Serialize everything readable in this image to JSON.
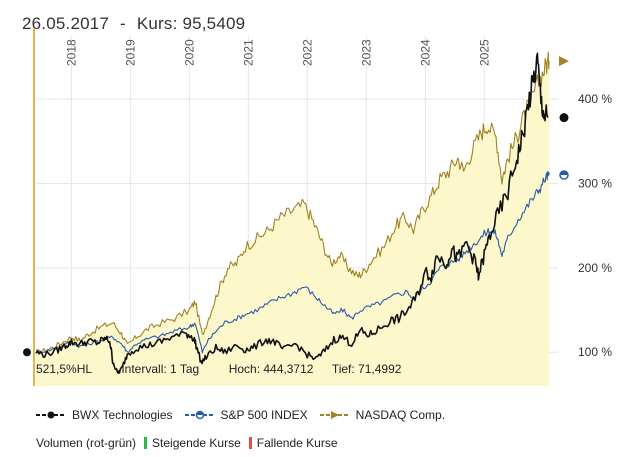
{
  "header": {
    "date": "26.05.2017",
    "separator": "-",
    "price_label": "Kurs: 95,5409"
  },
  "stats": {
    "hl": "521,5%HL",
    "interval": "Intervall: 1 Tag",
    "high": "Hoch: 444,3712",
    "low": "Tief: 71,4992"
  },
  "legend": {
    "volume_label": "Volumen (rot-grün)",
    "rising": "Steigende Kurse",
    "falling": "Fallende Kurse"
  },
  "colors": {
    "bwx": "#111111",
    "sp500": "#2a5caa",
    "nasdaq": "#a08324",
    "fill": "#fdf7cc",
    "start_line": "#e8b24a",
    "rising": "#2db84a",
    "falling": "#e84a4a"
  },
  "chart_data": {
    "type": "line",
    "x_ticks": [
      "2018",
      "2019",
      "2020",
      "2021",
      "2022",
      "2023",
      "2024",
      "2025"
    ],
    "y_ticks": [
      {
        "value": 100,
        "label": "100 %"
      },
      {
        "value": 200,
        "label": "200 %"
      },
      {
        "value": 300,
        "label": "300 %"
      },
      {
        "value": 400,
        "label": "400 %"
      }
    ],
    "x_range": [
      2017.4,
      2026.25
    ],
    "ylim": [
      60,
      470
    ],
    "series": [
      {
        "name": "BWX Technologies",
        "key": "bwx",
        "marker": "circle",
        "points": [
          [
            2017.4,
            100
          ],
          [
            2017.55,
            97
          ],
          [
            2017.75,
            102
          ],
          [
            2017.9,
            108
          ],
          [
            2018.0,
            112
          ],
          [
            2018.15,
            110
          ],
          [
            2018.3,
            113
          ],
          [
            2018.45,
            111
          ],
          [
            2018.55,
            116
          ],
          [
            2018.65,
            114
          ],
          [
            2018.7,
            90
          ],
          [
            2018.78,
            75
          ],
          [
            2018.85,
            80
          ],
          [
            2018.95,
            98
          ],
          [
            2019.1,
            105
          ],
          [
            2019.3,
            108
          ],
          [
            2019.5,
            112
          ],
          [
            2019.7,
            118
          ],
          [
            2019.95,
            122
          ],
          [
            2020.05,
            118
          ],
          [
            2020.1,
            112
          ],
          [
            2020.2,
            88
          ],
          [
            2020.3,
            95
          ],
          [
            2020.45,
            105
          ],
          [
            2020.6,
            100
          ],
          [
            2020.8,
            108
          ],
          [
            2020.95,
            103
          ],
          [
            2021.1,
            106
          ],
          [
            2021.3,
            115
          ],
          [
            2021.45,
            112
          ],
          [
            2021.6,
            103
          ],
          [
            2021.8,
            110
          ],
          [
            2022.0,
            97
          ],
          [
            2022.15,
            92
          ],
          [
            2022.3,
            102
          ],
          [
            2022.45,
            115
          ],
          [
            2022.6,
            118
          ],
          [
            2022.75,
            110
          ],
          [
            2022.9,
            125
          ],
          [
            2023.05,
            120
          ],
          [
            2023.2,
            127
          ],
          [
            2023.4,
            137
          ],
          [
            2023.55,
            140
          ],
          [
            2023.7,
            150
          ],
          [
            2023.85,
            165
          ],
          [
            2024.0,
            195
          ],
          [
            2024.1,
            190
          ],
          [
            2024.2,
            215
          ],
          [
            2024.35,
            205
          ],
          [
            2024.45,
            222
          ],
          [
            2024.55,
            210
          ],
          [
            2024.7,
            230
          ],
          [
            2024.85,
            205
          ],
          [
            2024.9,
            190
          ],
          [
            2025.0,
            215
          ],
          [
            2025.1,
            240
          ],
          [
            2025.25,
            265
          ],
          [
            2025.4,
            290
          ],
          [
            2025.55,
            330
          ],
          [
            2025.65,
            355
          ],
          [
            2025.75,
            395
          ],
          [
            2025.83,
            420
          ],
          [
            2025.9,
            445
          ],
          [
            2025.96,
            400
          ],
          [
            2026.02,
            380
          ],
          [
            2026.08,
            378
          ]
        ]
      },
      {
        "name": "S&P 500 INDEX",
        "key": "sp500",
        "marker": "half-circle",
        "points": [
          [
            2017.4,
            100
          ],
          [
            2017.6,
            102
          ],
          [
            2017.8,
            106
          ],
          [
            2018.0,
            112
          ],
          [
            2018.15,
            107
          ],
          [
            2018.3,
            110
          ],
          [
            2018.55,
            115
          ],
          [
            2018.7,
            118
          ],
          [
            2018.85,
            110
          ],
          [
            2018.95,
            100
          ],
          [
            2019.1,
            110
          ],
          [
            2019.3,
            116
          ],
          [
            2019.55,
            120
          ],
          [
            2019.75,
            125
          ],
          [
            2020.0,
            130
          ],
          [
            2020.1,
            135
          ],
          [
            2020.22,
            100
          ],
          [
            2020.3,
            112
          ],
          [
            2020.45,
            125
          ],
          [
            2020.6,
            135
          ],
          [
            2020.8,
            140
          ],
          [
            2020.95,
            145
          ],
          [
            2021.15,
            150
          ],
          [
            2021.35,
            158
          ],
          [
            2021.55,
            165
          ],
          [
            2021.75,
            170
          ],
          [
            2021.95,
            178
          ],
          [
            2022.15,
            165
          ],
          [
            2022.3,
            155
          ],
          [
            2022.45,
            145
          ],
          [
            2022.6,
            150
          ],
          [
            2022.75,
            140
          ],
          [
            2022.9,
            150
          ],
          [
            2023.1,
            155
          ],
          [
            2023.3,
            160
          ],
          [
            2023.5,
            168
          ],
          [
            2023.7,
            172
          ],
          [
            2023.8,
            162
          ],
          [
            2023.95,
            175
          ],
          [
            2024.1,
            185
          ],
          [
            2024.25,
            200
          ],
          [
            2024.4,
            205
          ],
          [
            2024.55,
            210
          ],
          [
            2024.7,
            220
          ],
          [
            2024.85,
            230
          ],
          [
            2025.0,
            240
          ],
          [
            2025.1,
            245
          ],
          [
            2025.2,
            240
          ],
          [
            2025.3,
            215
          ],
          [
            2025.4,
            235
          ],
          [
            2025.55,
            255
          ],
          [
            2025.7,
            270
          ],
          [
            2025.85,
            285
          ],
          [
            2025.95,
            295
          ],
          [
            2026.05,
            308
          ],
          [
            2026.1,
            310
          ]
        ]
      },
      {
        "name": "NASDAQ Comp.",
        "key": "nasdaq",
        "marker": "triangle",
        "points": [
          [
            2017.4,
            100
          ],
          [
            2017.6,
            103
          ],
          [
            2017.8,
            110
          ],
          [
            2018.0,
            118
          ],
          [
            2018.15,
            114
          ],
          [
            2018.3,
            122
          ],
          [
            2018.5,
            130
          ],
          [
            2018.7,
            135
          ],
          [
            2018.85,
            122
          ],
          [
            2018.95,
            108
          ],
          [
            2019.1,
            118
          ],
          [
            2019.3,
            128
          ],
          [
            2019.5,
            134
          ],
          [
            2019.75,
            140
          ],
          [
            2020.0,
            150
          ],
          [
            2020.1,
            160
          ],
          [
            2020.22,
            120
          ],
          [
            2020.35,
            145
          ],
          [
            2020.5,
            175
          ],
          [
            2020.65,
            200
          ],
          [
            2020.8,
            205
          ],
          [
            2020.95,
            225
          ],
          [
            2021.15,
            235
          ],
          [
            2021.35,
            245
          ],
          [
            2021.55,
            260
          ],
          [
            2021.75,
            268
          ],
          [
            2021.95,
            275
          ],
          [
            2022.1,
            255
          ],
          [
            2022.25,
            230
          ],
          [
            2022.4,
            205
          ],
          [
            2022.55,
            215
          ],
          [
            2022.7,
            200
          ],
          [
            2022.85,
            190
          ],
          [
            2022.95,
            195
          ],
          [
            2023.1,
            210
          ],
          [
            2023.3,
            225
          ],
          [
            2023.5,
            250
          ],
          [
            2023.65,
            260
          ],
          [
            2023.8,
            245
          ],
          [
            2023.95,
            268
          ],
          [
            2024.1,
            285
          ],
          [
            2024.25,
            305
          ],
          [
            2024.4,
            315
          ],
          [
            2024.55,
            330
          ],
          [
            2024.65,
            315
          ],
          [
            2024.8,
            340
          ],
          [
            2024.95,
            360
          ],
          [
            2025.05,
            370
          ],
          [
            2025.2,
            355
          ],
          [
            2025.3,
            305
          ],
          [
            2025.4,
            330
          ],
          [
            2025.55,
            355
          ],
          [
            2025.65,
            375
          ],
          [
            2025.8,
            400
          ],
          [
            2025.95,
            425
          ],
          [
            2026.05,
            440
          ],
          [
            2026.1,
            445
          ]
        ]
      }
    ],
    "end_markers": {
      "bwx": 378,
      "sp500": 310,
      "nasdaq": 445
    },
    "start_value": 100
  }
}
